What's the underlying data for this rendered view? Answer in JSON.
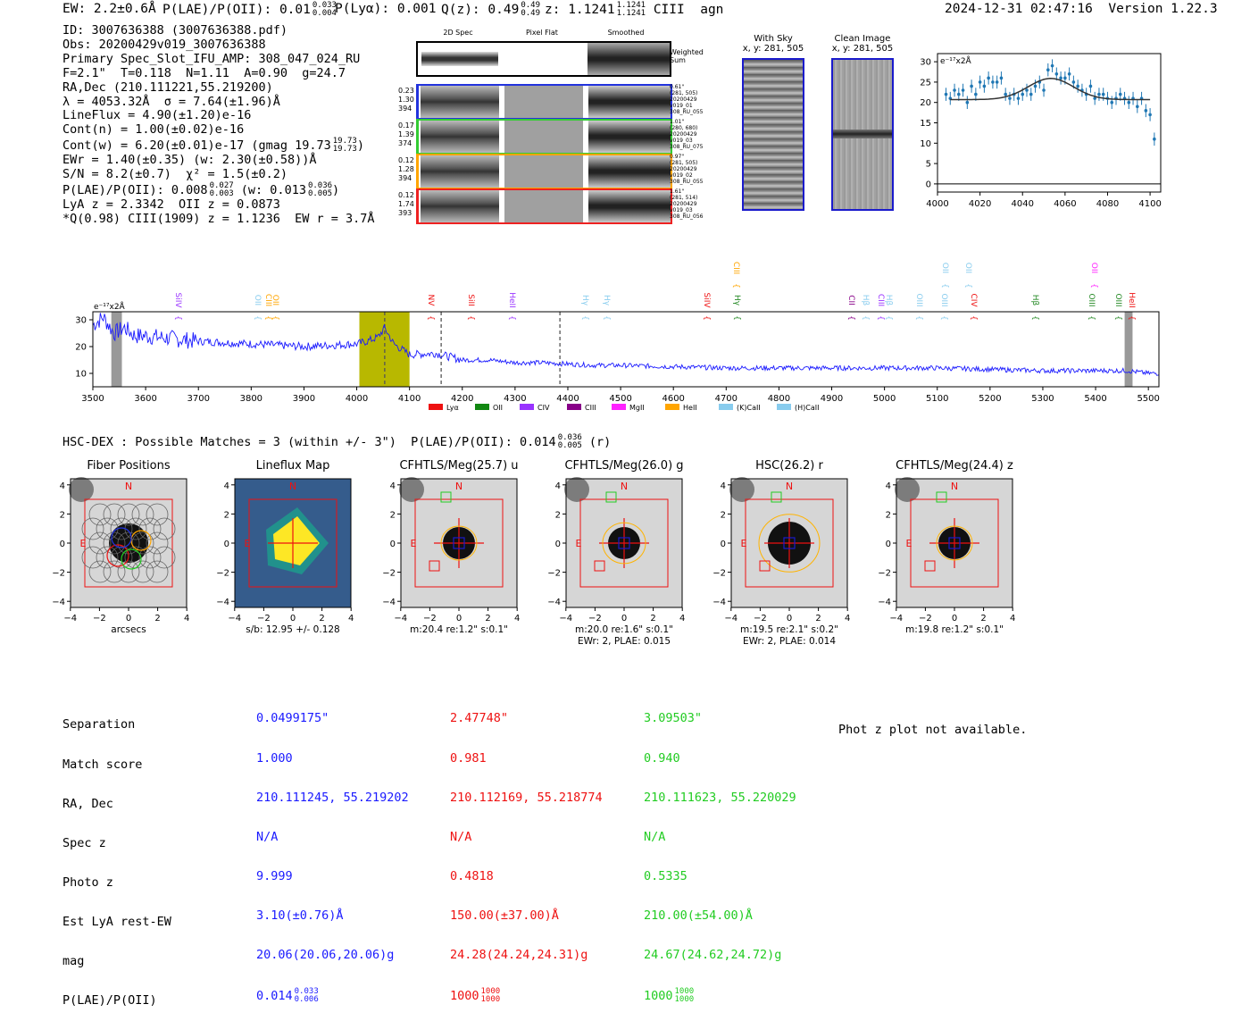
{
  "header": {
    "ew": "EW: 2.2±0.6Å",
    "plae_label": "P(LAE)/P(OII): 0.01",
    "plae_hi": "0.033",
    "plae_lo": "0.004",
    "plya": "P(Lyα): 0.001",
    "qz_label": "Q(z): 0.49",
    "qz_hi": "0.49",
    "qz_lo": "0.49",
    "z_label": "z: 1.1241",
    "z_hi": "1.1241",
    "z_lo": "1.1241",
    "line": "CIII",
    "class": "agn",
    "timestamp": "2024-12-31 02:47:16",
    "version": "Version 1.22.3"
  },
  "info": {
    "id": "ID: 3007636388 (3007636388.pdf)",
    "obs": "Obs: 20200429v019_3007636388",
    "primary": "Primary Spec_Slot_IFU_AMP: 308_047_024_RU",
    "fwhm": "F=2.1\"  T=0.118  N=1.11  A=0.90  g=24.7",
    "radec": "RA,Dec (210.111221,55.219200)",
    "lambda": "λ = 4053.32Å  σ = 7.64(±1.96)Å",
    "lineflux": "LineFlux = 4.90(±1.20)e-16",
    "contn": "Cont(n) = 1.00(±0.02)e-16",
    "contw": "Cont(w) = 6.20(±0.01)e-17 (gmag 19.73",
    "contw_hi": "19.73",
    "contw_lo": "19.73",
    "ewr": "EWr = 1.40(±0.35) (w: 2.30(±0.58))Å",
    "sn": "S/N = 8.2(±0.7)  χ² = 1.5(±0.2)",
    "plae": "P(LAE)/P(OII): 0.008",
    "plae_hi": "0.027",
    "plae_lo": "0.003",
    "plae_w": "(w: 0.013",
    "plae_w_hi": "0.036",
    "plae_w_lo": "0.005",
    "lya": "LyA z = 2.3342  OII z = 0.0873",
    "q": "*Q(0.98) CIII(1909) z = 1.1236  EW r = 3.7Å"
  },
  "cutouts": {
    "col_labels": [
      "2D Spec",
      "Pixel Flat",
      "Smoothed"
    ],
    "weighted_sum": "Weighted Sum",
    "rows": [
      {
        "left": [
          "0.23",
          "1.30",
          "394"
        ],
        "right": [
          "0.61\"",
          "(281, 505)",
          "20200429",
          "v019_01",
          "308_RU_055"
        ],
        "color": "#2233dd"
      },
      {
        "left": [
          "0.17",
          "1.39",
          "374"
        ],
        "right": [
          "1.01\"",
          "(280, 680)",
          "20200429",
          "v019_03",
          "308_RU_075"
        ],
        "color": "#33cc33"
      },
      {
        "left": [
          "0.12",
          "1.28",
          "394"
        ],
        "right": [
          "0.97\"",
          "(281, 505)",
          "20200429",
          "v019_02",
          "308_RU_055"
        ],
        "color": "#ffa500"
      },
      {
        "left": [
          "0.12",
          "1.74",
          "393"
        ],
        "right": [
          "1.61\"",
          "(281, 514)",
          "20200429",
          "v019_03",
          "308_RU_056"
        ],
        "color": "#ee2222"
      }
    ]
  },
  "sky": {
    "with_sky": "With Sky",
    "with_sky_xy": "x, y: 281, 505",
    "clean": "Clean Image",
    "clean_xy": "x, y: 281, 505"
  },
  "zoom_plot": {
    "ylabel": "e⁻¹⁷x2Å",
    "xticks": [
      "4000",
      "4020",
      "4040",
      "4060",
      "4080",
      "4100"
    ],
    "yticks": [
      "0",
      "5",
      "10",
      "15",
      "20",
      "25",
      "30"
    ]
  },
  "spectrum": {
    "ylabel": "e⁻¹⁷x2Å",
    "xticks": [
      "3500",
      "3600",
      "3700",
      "3800",
      "3900",
      "4000",
      "4100",
      "4200",
      "4300",
      "4400",
      "4500",
      "4600",
      "4700",
      "4800",
      "4900",
      "5000",
      "5100",
      "5200",
      "5300",
      "5400",
      "5500"
    ],
    "yticks": [
      "10",
      "20",
      "30"
    ],
    "lines": [
      {
        "name": "SiIV",
        "color": "#9933ff"
      },
      {
        "name": "OII",
        "color": "#88ccee"
      },
      {
        "name": "CIII",
        "color": "#ffa500"
      },
      {
        "name": "OII",
        "color": "#ffa500"
      },
      {
        "name": "NV",
        "color": "#ee1111"
      },
      {
        "name": "SiII",
        "color": "#ee1111"
      },
      {
        "name": "HeII",
        "color": "#9933ff"
      },
      {
        "name": "Hγ",
        "color": "#88ccee"
      },
      {
        "name": "Hγ",
        "color": "#88ccee"
      },
      {
        "name": "SiIV",
        "color": "#ee1111"
      },
      {
        "name": "Hγ",
        "color": "#228822"
      },
      {
        "name": "CIII",
        "color": "#ffa500"
      },
      {
        "name": "CII",
        "color": "#880088"
      },
      {
        "name": "Hβ",
        "color": "#88ccee"
      },
      {
        "name": "CIII",
        "color": "#9933ff"
      },
      {
        "name": "Hβ",
        "color": "#88ccee"
      },
      {
        "name": "OIII",
        "color": "#88ccee"
      },
      {
        "name": "OIII",
        "color": "#88ccee"
      },
      {
        "name": "OII",
        "color": "#88ccee"
      },
      {
        "name": "OII",
        "color": "#88ccee"
      },
      {
        "name": "CIV",
        "color": "#ee1111"
      },
      {
        "name": "Hβ",
        "color": "#228822"
      },
      {
        "name": "OIII",
        "color": "#228822"
      },
      {
        "name": "OII",
        "color": "#ff22ff"
      },
      {
        "name": "OIII",
        "color": "#228822"
      },
      {
        "name": "HeII",
        "color": "#ee1111"
      }
    ],
    "legend": [
      {
        "label": "Lyα",
        "color": "#ee1111"
      },
      {
        "label": "OII",
        "color": "#118811"
      },
      {
        "label": "CIV",
        "color": "#9933ff"
      },
      {
        "label": "CIII",
        "color": "#880088"
      },
      {
        "label": "MgII",
        "color": "#ff22ff"
      },
      {
        "label": "HeII",
        "color": "#ffa500"
      },
      {
        "label": "(K)CaII",
        "color": "#88ccee"
      },
      {
        "label": "(H)CaII",
        "color": "#88ccee"
      }
    ]
  },
  "hsc": {
    "title": "HSC-DEX : Possible Matches = 3 (within +/- 3\")  P(LAE)/P(OII): 0.014",
    "hi": "0.036",
    "lo": "0.005",
    "band": "(r)"
  },
  "panels": [
    {
      "title": "Fiber Positions",
      "sub1": "arcsecs",
      "sub2": ""
    },
    {
      "title": "Lineflux Map",
      "sub1": "s/b: 12.95 +/- 0.128",
      "sub2": ""
    },
    {
      "title": "CFHTLS/Meg(25.7) u",
      "sub1": "m:20.4  re:1.2\"  s:0.1\"",
      "sub2": ""
    },
    {
      "title": "CFHTLS/Meg(26.0) g",
      "sub1": "m:20.0  re:1.6\"  s:0.1\"",
      "sub2": "EWr: 2, PLAE: 0.015"
    },
    {
      "title": "HSC(26.2) r",
      "sub1": "m:19.5  re:2.1\"  s:0.2\"",
      "sub2": "EWr: 2, PLAE: 0.014"
    },
    {
      "title": "CFHTLS/Meg(24.4) z",
      "sub1": "m:19.8  re:1.2\"  s:0.1\"",
      "sub2": ""
    }
  ],
  "compass": {
    "n": "N",
    "e": "E"
  },
  "axis_ticks": {
    "x": [
      "−4",
      "−2",
      "0",
      "2",
      "4"
    ],
    "y": [
      "4",
      "2",
      "0",
      "−2",
      "−4"
    ]
  },
  "match_table": {
    "labels": [
      "Separation",
      "Match score",
      "RA, Dec",
      "Spec z",
      "Photo z",
      "Est LyA rest-EW",
      "mag",
      "P(LAE)/P(OII)"
    ],
    "cols": [
      {
        "values": [
          "0.0499175\"",
          "1.000",
          "210.111245, 55.219202",
          "N/A",
          "9.999",
          "3.10(±0.76)Å",
          "20.06(20.06,20.06)g",
          "0.014"
        ],
        "hi": "0.033",
        "lo": "0.006"
      },
      {
        "values": [
          "2.47748\"",
          "0.981",
          "210.112169, 55.218774",
          "N/A",
          "0.4818",
          "150.00(±37.00)Å",
          "24.28(24.24,24.31)g",
          "1000"
        ],
        "hi": "1000",
        "lo": "1000"
      },
      {
        "values": [
          "3.09503\"",
          "0.940",
          "210.111623, 55.220029",
          "N/A",
          "0.5335",
          "210.00(±54.00)Å",
          "24.67(24.62,24.72)g",
          "1000"
        ],
        "hi": "1000",
        "lo": "1000"
      }
    ],
    "photz_note": "Phot z plot not available."
  },
  "chart_data": [
    {
      "type": "scatter",
      "title": "",
      "xlabel": "",
      "ylabel": "e-17x2A",
      "xlim": [
        4000,
        4105
      ],
      "ylim": [
        -2,
        32
      ],
      "x": [
        4004,
        4006,
        4008,
        4010,
        4012,
        4014,
        4016,
        4018,
        4020,
        4022,
        4024,
        4026,
        4028,
        4030,
        4032,
        4034,
        4036,
        4038,
        4040,
        4042,
        4044,
        4046,
        4048,
        4050,
        4052,
        4054,
        4056,
        4058,
        4060,
        4062,
        4064,
        4066,
        4068,
        4070,
        4072,
        4074,
        4076,
        4078,
        4080,
        4082,
        4084,
        4086,
        4088,
        4090,
        4092,
        4094,
        4096,
        4098,
        4100,
        4102
      ],
      "y": [
        22,
        21,
        23,
        22,
        23,
        20,
        24,
        22,
        25,
        24,
        26,
        25,
        25,
        26,
        22,
        21,
        22,
        21,
        22,
        23,
        22,
        24,
        25,
        23,
        28,
        29,
        27,
        26,
        26,
        27,
        25,
        24,
        23,
        22,
        24,
        21,
        22,
        22,
        21,
        20,
        21,
        22,
        21,
        20,
        21,
        19,
        21,
        18,
        17,
        11
      ],
      "model_label": "Gaussian fit",
      "model_params": {
        "continuum": 20.7,
        "amplitude": 5.2,
        "center": 4053.3,
        "sigma": 7.6
      }
    },
    {
      "type": "line",
      "title": "",
      "xlabel": "",
      "ylabel": "e-17x2A",
      "xlim": [
        3500,
        5520
      ],
      "ylim": [
        5,
        33
      ],
      "x": [
        3500,
        3520,
        3540,
        3560,
        3580,
        3600,
        3650,
        3700,
        3750,
        3800,
        3850,
        3900,
        3950,
        4000,
        4020,
        4040,
        4053,
        4070,
        4100,
        4150,
        4200,
        4250,
        4300,
        4350,
        4400,
        4450,
        4500,
        4600,
        4700,
        4800,
        4900,
        5000,
        5100,
        5200,
        5300,
        5400,
        5460,
        5500,
        5520
      ],
      "y": [
        28,
        31,
        25,
        27,
        24,
        24,
        23,
        22,
        21.5,
        21,
        20.5,
        20,
        20.5,
        21,
        22,
        23.5,
        27,
        21,
        17,
        17.5,
        15,
        15,
        14,
        14,
        13.5,
        13,
        13,
        12.5,
        12,
        12,
        12,
        12,
        12,
        11.5,
        11,
        11,
        11,
        10,
        10
      ],
      "shaded_regions": [
        [
          3535,
          3555
        ],
        [
          4005,
          4100
        ],
        [
          5455,
          5470
        ]
      ],
      "dashed_lines": [
        4053,
        4160,
        4385
      ]
    }
  ]
}
